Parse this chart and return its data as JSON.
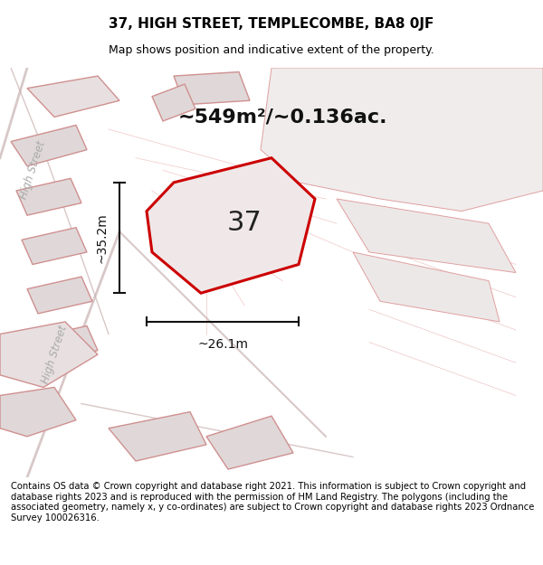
{
  "title": "37, HIGH STREET, TEMPLECOMBE, BA8 0JF",
  "subtitle": "Map shows position and indicative extent of the property.",
  "area_label": "~549m²/~0.136ac.",
  "property_number": "37",
  "dim_vertical": "~35.2m",
  "dim_horizontal": "~26.1m",
  "footer": "Contains OS data © Crown copyright and database right 2021. This information is subject to Crown copyright and database rights 2023 and is reproduced with the permission of HM Land Registry. The polygons (including the associated geometry, namely x, y co-ordinates) are subject to Crown copyright and database rights 2023 Ordnance Survey 100026316.",
  "bg_color": "#ffffff",
  "map_bg": "#f5f0f0",
  "property_fill": "#f0e8e8",
  "property_edge": "#cc0000",
  "building_fill": "#e8e0e0",
  "building_edge": "#e8a0a0",
  "road_color": "#d0c0c0",
  "street_label_color": "#aaaaaa",
  "title_fontsize": 11,
  "subtitle_fontsize": 9,
  "area_fontsize": 16,
  "number_fontsize": 22,
  "dim_fontsize": 10,
  "footer_fontsize": 7.2
}
